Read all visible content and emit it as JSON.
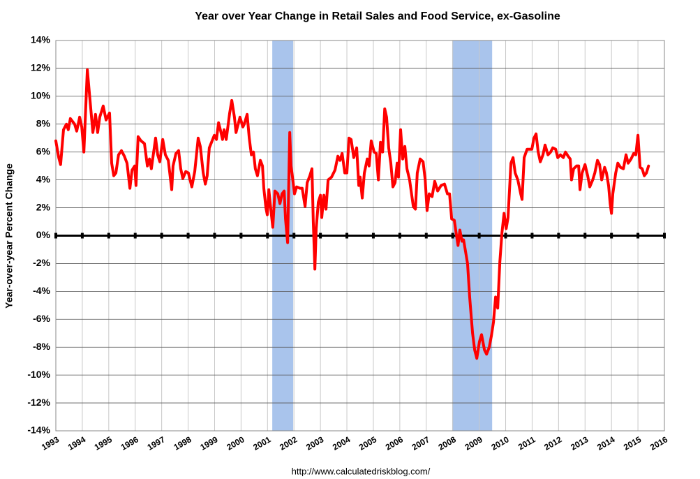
{
  "chart_data": {
    "type": "line",
    "title": "Year over Year Change in Retail Sales and Food Service, ex-Gasoline",
    "ylabel": "Year-over-year Percent Change",
    "source": "http://www.calculatedriskblog.com/",
    "color": "#ff0000",
    "shade_color": "#a9c4ec",
    "grid": true,
    "xlim": [
      1993,
      2016
    ],
    "ylim": [
      -14,
      14
    ],
    "xticks": [
      1993,
      1994,
      1995,
      1996,
      1997,
      1998,
      1999,
      2000,
      2001,
      2002,
      2003,
      2004,
      2005,
      2006,
      2007,
      2008,
      2009,
      2010,
      2011,
      2012,
      2013,
      2014,
      2015,
      2016
    ],
    "yticks": [
      {
        "value": -14,
        "label": "-14%"
      },
      {
        "value": -12,
        "label": "-12%"
      },
      {
        "value": -10,
        "label": "-10%"
      },
      {
        "value": -8,
        "label": "-8%"
      },
      {
        "value": -6,
        "label": "-6%"
      },
      {
        "value": -4,
        "label": "-4%"
      },
      {
        "value": -2,
        "label": "-2%"
      },
      {
        "value": 0,
        "label": "0%"
      },
      {
        "value": 2,
        "label": "2%"
      },
      {
        "value": 4,
        "label": "4%"
      },
      {
        "value": 6,
        "label": "6%"
      },
      {
        "value": 8,
        "label": "8%"
      },
      {
        "value": 10,
        "label": "10%"
      },
      {
        "value": 12,
        "label": "12%"
      },
      {
        "value": 14,
        "label": "14%"
      }
    ],
    "shaded": [
      [
        2001.18,
        2001.97
      ],
      [
        2007.98,
        2009.49
      ]
    ],
    "x": [
      1993.0,
      1993.11,
      1993.18,
      1993.29,
      1993.4,
      1993.47,
      1993.55,
      1993.71,
      1993.79,
      1993.9,
      1993.98,
      1994.06,
      1994.19,
      1994.4,
      1994.5,
      1994.58,
      1994.66,
      1994.79,
      1994.9,
      1995.03,
      1995.11,
      1995.19,
      1995.27,
      1995.37,
      1995.48,
      1995.59,
      1995.69,
      1995.8,
      1995.88,
      1995.98,
      1996.03,
      1996.11,
      1996.22,
      1996.35,
      1996.46,
      1996.54,
      1996.61,
      1996.77,
      1996.85,
      1996.93,
      1997.04,
      1997.14,
      1997.25,
      1997.38,
      1997.43,
      1997.54,
      1997.64,
      1997.72,
      1997.8,
      1997.91,
      1998.01,
      1998.14,
      1998.25,
      1998.38,
      1998.46,
      1998.57,
      1998.65,
      1998.72,
      1998.8,
      1998.99,
      1999.07,
      1999.15,
      1999.23,
      1999.3,
      1999.36,
      1999.44,
      1999.57,
      1999.65,
      1999.75,
      1999.81,
      1999.96,
      2000.07,
      2000.12,
      2000.23,
      2000.31,
      2000.39,
      2000.47,
      2000.54,
      2000.62,
      2000.73,
      2000.81,
      2000.86,
      2000.94,
      2000.99,
      2001.05,
      2001.13,
      2001.2,
      2001.28,
      2001.39,
      2001.47,
      2001.55,
      2001.63,
      2001.68,
      2001.76,
      2001.84,
      2001.89,
      2001.97,
      2002.02,
      2002.1,
      2002.23,
      2002.31,
      2002.42,
      2002.5,
      2002.6,
      2002.68,
      2002.73,
      2002.79,
      2002.84,
      2002.92,
      2003.0,
      2003.05,
      2003.13,
      2003.21,
      2003.29,
      2003.42,
      2003.55,
      2003.66,
      2003.74,
      2003.82,
      2003.92,
      2004.0,
      2004.08,
      2004.16,
      2004.26,
      2004.37,
      2004.45,
      2004.5,
      2004.58,
      2004.66,
      2004.77,
      2004.84,
      2004.92,
      2005.03,
      2005.11,
      2005.19,
      2005.27,
      2005.35,
      2005.43,
      2005.5,
      2005.58,
      2005.66,
      2005.74,
      2005.82,
      2005.9,
      2005.95,
      2006.03,
      2006.11,
      2006.19,
      2006.27,
      2006.37,
      2006.51,
      2006.59,
      2006.66,
      2006.77,
      2006.88,
      2006.96,
      2007.03,
      2007.11,
      2007.22,
      2007.32,
      2007.43,
      2007.56,
      2007.69,
      2007.8,
      2007.88,
      2007.96,
      2008.06,
      2008.12,
      2008.2,
      2008.27,
      2008.35,
      2008.41,
      2008.49,
      2008.56,
      2008.64,
      2008.75,
      2008.83,
      2008.91,
      2009.01,
      2009.09,
      2009.2,
      2009.28,
      2009.38,
      2009.46,
      2009.54,
      2009.62,
      2009.7,
      2009.78,
      2009.86,
      2009.94,
      2010.02,
      2010.09,
      2010.2,
      2010.28,
      2010.36,
      2010.46,
      2010.57,
      2010.62,
      2010.7,
      2010.81,
      2010.99,
      2011.07,
      2011.15,
      2011.23,
      2011.31,
      2011.41,
      2011.49,
      2011.6,
      2011.7,
      2011.78,
      2011.89,
      2011.97,
      2012.07,
      2012.18,
      2012.26,
      2012.36,
      2012.44,
      2012.49,
      2012.57,
      2012.68,
      2012.76,
      2012.81,
      2012.89,
      2013.0,
      2013.1,
      2013.18,
      2013.29,
      2013.37,
      2013.47,
      2013.55,
      2013.63,
      2013.74,
      2013.81,
      2013.89,
      2013.95,
      2014.0,
      2014.05,
      2014.16,
      2014.24,
      2014.34,
      2014.45,
      2014.55,
      2014.63,
      2014.74,
      2014.84,
      2014.92,
      2015.0,
      2015.08,
      2015.16,
      2015.24,
      2015.32,
      2015.4
    ],
    "values": [
      6.8,
      5.6,
      5.1,
      7.6,
      8.0,
      7.6,
      8.4,
      8.0,
      7.5,
      8.5,
      7.8,
      6.0,
      11.9,
      7.4,
      8.7,
      7.4,
      8.5,
      9.3,
      8.3,
      8.8,
      5.2,
      4.3,
      4.5,
      5.8,
      6.1,
      5.7,
      5.2,
      3.4,
      4.7,
      5.0,
      3.6,
      7.1,
      6.8,
      6.6,
      5.0,
      5.5,
      4.8,
      7.0,
      5.8,
      5.3,
      6.9,
      5.8,
      5.4,
      3.3,
      5.0,
      5.9,
      6.1,
      4.8,
      4.1,
      4.6,
      4.5,
      3.5,
      4.6,
      7.0,
      6.4,
      4.5,
      3.7,
      4.3,
      6.3,
      7.2,
      6.9,
      8.1,
      7.5,
      6.9,
      7.6,
      6.9,
      8.8,
      9.7,
      8.5,
      7.4,
      8.5,
      7.8,
      8.0,
      8.7,
      7.0,
      5.8,
      6.0,
      4.8,
      4.3,
      5.4,
      5.0,
      3.4,
      2.0,
      1.5,
      3.3,
      1.8,
      0.6,
      3.2,
      3.0,
      2.3,
      3.0,
      3.2,
      1.2,
      -0.5,
      7.4,
      5.0,
      3.8,
      3.0,
      3.5,
      3.4,
      3.4,
      2.1,
      3.8,
      4.3,
      4.8,
      1.0,
      -2.4,
      0.5,
      2.4,
      2.9,
      1.3,
      2.9,
      1.9,
      4.0,
      4.2,
      4.7,
      5.7,
      5.4,
      5.9,
      4.5,
      4.5,
      7.0,
      6.9,
      5.6,
      6.3,
      3.6,
      4.2,
      2.7,
      4.5,
      5.5,
      5.0,
      6.8,
      6.0,
      5.9,
      4.0,
      6.7,
      6.0,
      9.1,
      8.5,
      6.3,
      5.2,
      3.5,
      3.8,
      5.2,
      4.2,
      7.6,
      5.5,
      6.4,
      4.8,
      4.0,
      2.1,
      1.9,
      4.5,
      5.5,
      5.3,
      4.0,
      1.8,
      3.0,
      2.8,
      3.9,
      3.2,
      3.6,
      3.7,
      3.0,
      3.0,
      1.2,
      1.1,
      0.3,
      -0.7,
      0.4,
      -0.4,
      -0.3,
      -1.2,
      -2.0,
      -4.4,
      -7.0,
      -8.2,
      -8.8,
      -7.6,
      -7.1,
      -8.2,
      -8.5,
      -8.0,
      -7.2,
      -6.2,
      -4.4,
      -5.2,
      -1.9,
      0.2,
      1.6,
      0.5,
      1.3,
      5.2,
      5.6,
      4.5,
      4.0,
      3.0,
      2.6,
      5.6,
      6.2,
      6.2,
      7.0,
      7.3,
      6.0,
      5.3,
      5.8,
      6.5,
      5.8,
      6.0,
      6.3,
      6.2,
      5.6,
      5.8,
      5.6,
      6.0,
      5.7,
      5.5,
      4.0,
      4.8,
      5.0,
      5.0,
      3.3,
      4.5,
      5.1,
      4.3,
      3.5,
      4.0,
      4.5,
      5.4,
      5.1,
      4.0,
      4.9,
      4.5,
      3.6,
      2.3,
      1.6,
      3.0,
      4.5,
      5.2,
      4.9,
      4.8,
      5.8,
      5.2,
      5.5,
      5.9,
      5.8,
      7.2,
      4.9,
      4.8,
      4.3,
      4.5,
      5.0
    ]
  }
}
